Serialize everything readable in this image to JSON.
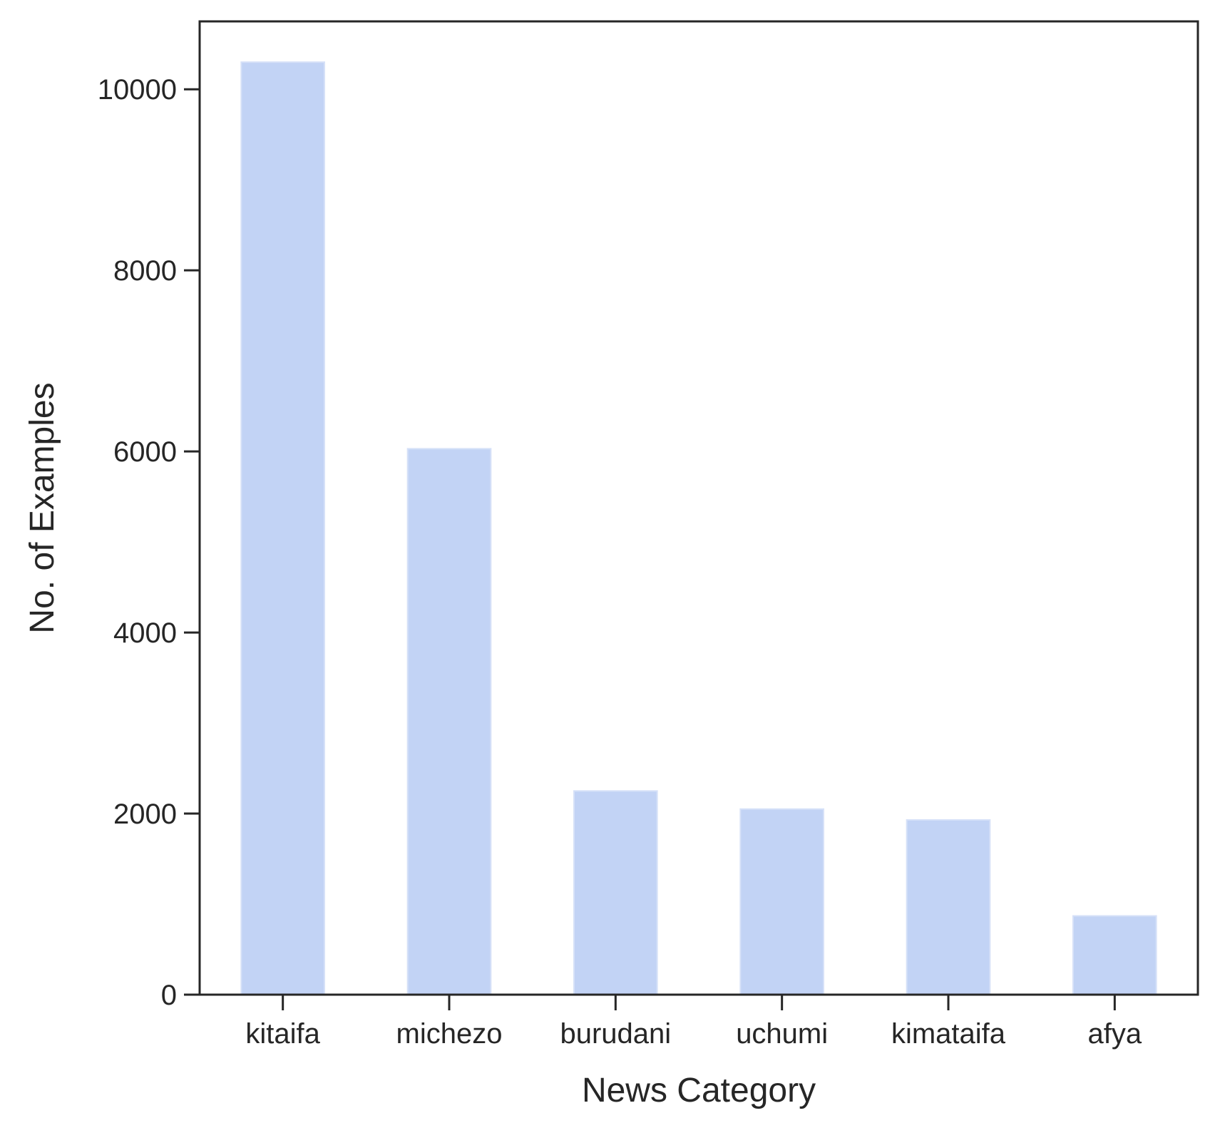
{
  "chart_data": {
    "type": "bar",
    "title": "",
    "xlabel": "News Category",
    "ylabel": "No. of Examples",
    "categories": [
      "kitaifa",
      "michezo",
      "burudani",
      "uchumi",
      "kimataifa",
      "afya"
    ],
    "values": [
      10300,
      6030,
      2250,
      2050,
      1930,
      870
    ],
    "ylim": [
      0,
      10750
    ],
    "yticks": [
      0,
      2000,
      4000,
      6000,
      8000,
      10000
    ],
    "ytick_labels": [
      "0",
      "2000",
      "4000",
      "6000",
      "8000",
      "10000"
    ],
    "grid": false,
    "legend": "none",
    "colors": {
      "bar_fill": "#c2d3f5",
      "bar_edge": "#d6e1f8",
      "axis": "#262626",
      "text": "#262626"
    }
  }
}
